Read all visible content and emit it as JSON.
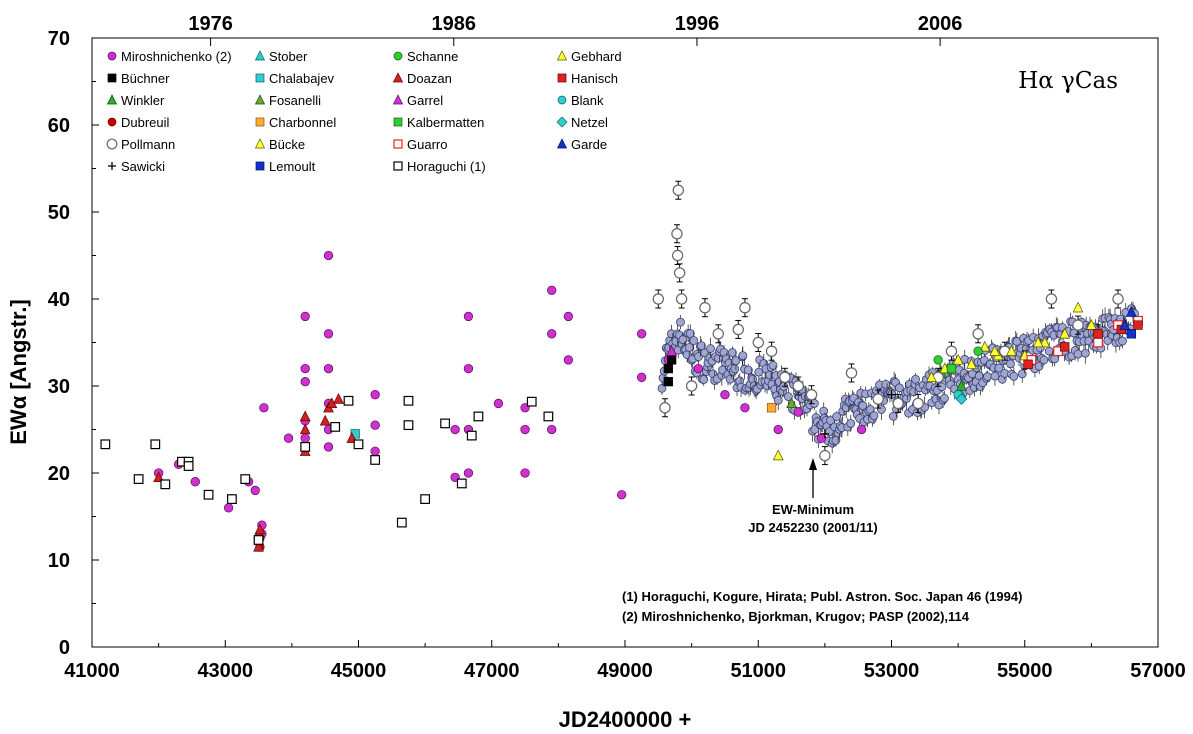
{
  "chart_data": {
    "type": "scatter",
    "title": "Hα γCas",
    "xlabel": "JD2400000 +",
    "ylabel": "EWα [Angstr.]",
    "xlim": [
      41000,
      57000
    ],
    "ylim": [
      0,
      70
    ],
    "x_ticks": [
      41000,
      43000,
      45000,
      47000,
      49000,
      51000,
      53000,
      55000,
      57000
    ],
    "y_ticks": [
      0,
      10,
      20,
      30,
      40,
      50,
      60,
      70
    ],
    "secondary_x_axis": {
      "position": "top",
      "labels": [
        {
          "label": "1976",
          "jd": 42780
        },
        {
          "label": "1986",
          "jd": 46430
        },
        {
          "label": "1996",
          "jd": 50080
        },
        {
          "label": "2006",
          "jd": 53730
        }
      ]
    },
    "grid": false,
    "legend_position": "top-left",
    "annotation": {
      "lines": [
        "EW-Minimum",
        "JD 2452230 (2001/11)"
      ],
      "x": 52230,
      "y": 21
    },
    "references": [
      "(1) Horaguchi, Kogure, Hirata; Publ. Astron. Soc. Japan 46 (1994)",
      "(2) Miroshnichenko, Bjorkman, Krugov; PASP (2002),114"
    ],
    "series": [
      {
        "name": "Miroshnichenko (2)",
        "marker": "circle",
        "color": "#cc33cc",
        "stroke": "#660066",
        "points": [
          [
            42000,
            20
          ],
          [
            42300,
            21
          ],
          [
            42550,
            19
          ],
          [
            42750,
            17.5
          ],
          [
            43050,
            16
          ],
          [
            43350,
            19
          ],
          [
            43450,
            18
          ],
          [
            43550,
            13
          ],
          [
            43550,
            14
          ],
          [
            43580,
            27.5
          ],
          [
            43950,
            24
          ],
          [
            44200,
            38
          ],
          [
            44200,
            32
          ],
          [
            44200,
            30.5
          ],
          [
            44200,
            26
          ],
          [
            44200,
            24
          ],
          [
            44550,
            45
          ],
          [
            44550,
            36
          ],
          [
            44550,
            32
          ],
          [
            44550,
            28
          ],
          [
            44550,
            25
          ],
          [
            44550,
            23
          ],
          [
            45250,
            29
          ],
          [
            45250,
            25.5
          ],
          [
            45250,
            22.5
          ],
          [
            46450,
            25
          ],
          [
            46450,
            19.5
          ],
          [
            46650,
            38
          ],
          [
            46650,
            32
          ],
          [
            46650,
            25
          ],
          [
            46650,
            20
          ],
          [
            47100,
            28
          ],
          [
            47500,
            27.5
          ],
          [
            47500,
            25
          ],
          [
            47500,
            20
          ],
          [
            47900,
            41
          ],
          [
            47900,
            36
          ],
          [
            47900,
            25
          ],
          [
            48150,
            38
          ],
          [
            48150,
            33
          ],
          [
            48950,
            17.5
          ],
          [
            49250,
            36
          ],
          [
            49250,
            31
          ],
          [
            49650,
            33
          ],
          [
            50100,
            32
          ],
          [
            50500,
            29
          ],
          [
            50800,
            27.5
          ],
          [
            51300,
            25
          ],
          [
            51600,
            27
          ],
          [
            51950,
            24
          ],
          [
            52550,
            25
          ]
        ]
      },
      {
        "name": "Büchner",
        "marker": "square",
        "color": "#000000",
        "stroke": "#000000",
        "points": [
          [
            49650,
            30.5
          ],
          [
            49650,
            32
          ],
          [
            49700,
            33
          ]
        ]
      },
      {
        "name": "Winkler",
        "marker": "triangle",
        "color": "#33aa33",
        "stroke": "#005500",
        "points": [
          [
            53750,
            31.5
          ],
          [
            54050,
            30
          ]
        ]
      },
      {
        "name": "Dubreuil",
        "marker": "circle",
        "color": "#cc0000",
        "stroke": "#660000",
        "points": [
          [
            43520,
            12.5
          ],
          [
            43520,
            11.5
          ]
        ]
      },
      {
        "name": "Pollmann",
        "marker": "ocircle",
        "color": "#666666",
        "stroke": "#666666",
        "points": [
          [
            49500,
            40
          ],
          [
            49600,
            27.5
          ],
          [
            49800,
            52.5
          ],
          [
            49780,
            47.5
          ],
          [
            49790,
            45
          ],
          [
            49820,
            43
          ],
          [
            49850,
            40
          ],
          [
            50000,
            30
          ],
          [
            50200,
            39
          ],
          [
            50400,
            36
          ],
          [
            50700,
            36.5
          ],
          [
            50800,
            39
          ],
          [
            51000,
            35
          ],
          [
            51200,
            34
          ],
          [
            51400,
            31
          ],
          [
            51600,
            30
          ],
          [
            51800,
            29
          ],
          [
            52000,
            22
          ],
          [
            52400,
            31.5
          ],
          [
            52800,
            28.5
          ],
          [
            53100,
            28
          ],
          [
            53400,
            28
          ],
          [
            53700,
            31
          ],
          [
            53900,
            34
          ],
          [
            54300,
            36
          ],
          [
            54700,
            34
          ],
          [
            55000,
            33
          ],
          [
            55400,
            40
          ],
          [
            55800,
            37
          ],
          [
            56100,
            36
          ],
          [
            56400,
            40
          ]
        ]
      },
      {
        "name": "Sawicki",
        "marker": "plus",
        "color": "#000000",
        "stroke": "#000000",
        "points": [
          [
            52000,
            24.5
          ],
          [
            53000,
            29
          ]
        ]
      },
      {
        "name": "Stober",
        "marker": "triangle",
        "color": "#33cccc",
        "stroke": "#006666",
        "points": [
          [
            54050,
            29
          ]
        ]
      },
      {
        "name": "Chalabajev",
        "marker": "square",
        "color": "#33cccc",
        "stroke": "#006666",
        "points": [
          [
            44950,
            24.5
          ]
        ]
      },
      {
        "name": "Fosanelli",
        "marker": "triangle",
        "color": "#66aa33",
        "stroke": "#224400",
        "points": [
          [
            51500,
            28
          ]
        ]
      },
      {
        "name": "Charbonnel",
        "marker": "square",
        "color": "#ffaa33",
        "stroke": "#885500",
        "points": [
          [
            51200,
            27.5
          ]
        ]
      },
      {
        "name": "Bücke",
        "marker": "triangle",
        "color": "#ffff33",
        "stroke": "#555500",
        "points": [
          [
            51300,
            22
          ],
          [
            53600,
            31
          ],
          [
            53800,
            32
          ],
          [
            54000,
            33
          ],
          [
            54200,
            32.5
          ],
          [
            54400,
            34.5
          ],
          [
            54600,
            33.5
          ],
          [
            54800,
            34
          ],
          [
            55000,
            33.5
          ],
          [
            55300,
            35
          ],
          [
            55600,
            36
          ],
          [
            55800,
            39
          ],
          [
            56000,
            37
          ]
        ]
      },
      {
        "name": "Lemoult",
        "marker": "square",
        "color": "#1133cc",
        "stroke": "#001166",
        "points": [
          [
            56600,
            36
          ]
        ]
      },
      {
        "name": "Schanne",
        "marker": "circle",
        "color": "#33cc33",
        "stroke": "#006600",
        "points": [
          [
            53700,
            33
          ],
          [
            54300,
            34
          ]
        ]
      },
      {
        "name": "Doazan",
        "marker": "triangle",
        "color": "#cc2222",
        "stroke": "#660000",
        "points": [
          [
            42000,
            19.5
          ],
          [
            43500,
            11.5
          ],
          [
            43500,
            13
          ],
          [
            43520,
            13.5
          ],
          [
            44200,
            22.5
          ],
          [
            44200,
            25
          ],
          [
            44200,
            26.5
          ],
          [
            44500,
            26
          ],
          [
            44550,
            27.5
          ],
          [
            44600,
            28
          ],
          [
            44700,
            28.5
          ],
          [
            44900,
            24
          ]
        ]
      },
      {
        "name": "Garrel",
        "marker": "triangle",
        "color": "#cc33cc",
        "stroke": "#660066",
        "points": [
          [
            49700,
            34
          ]
        ]
      },
      {
        "name": "Kalbermatten",
        "marker": "square",
        "color": "#33cc33",
        "stroke": "#006600",
        "points": [
          [
            53900,
            32
          ]
        ]
      },
      {
        "name": "Guarro",
        "marker": "osquare",
        "color": "#ee2222",
        "stroke": "#ee2222",
        "points": [
          [
            55100,
            33
          ],
          [
            55500,
            34
          ],
          [
            56100,
            35
          ],
          [
            56400,
            37
          ],
          [
            56700,
            37.5
          ]
        ]
      },
      {
        "name": "Horaguchi (1)",
        "marker": "osquare",
        "color": "#000000",
        "stroke": "#000000",
        "points": [
          [
            41200,
            23.3
          ],
          [
            41700,
            19.3
          ],
          [
            41950,
            23.3
          ],
          [
            42100,
            18.7
          ],
          [
            42350,
            21.3
          ],
          [
            42450,
            21.3
          ],
          [
            42450,
            20.8
          ],
          [
            42750,
            17.5
          ],
          [
            43100,
            17
          ],
          [
            43300,
            19.3
          ],
          [
            43500,
            12.3
          ],
          [
            44200,
            23
          ],
          [
            44650,
            25.3
          ],
          [
            44850,
            28.3
          ],
          [
            45000,
            23.3
          ],
          [
            45250,
            21.5
          ],
          [
            45650,
            14.3
          ],
          [
            45750,
            28.3
          ],
          [
            45750,
            25.5
          ],
          [
            46000,
            17
          ],
          [
            46300,
            25.7
          ],
          [
            46550,
            18.8
          ],
          [
            46700,
            24.3
          ],
          [
            46800,
            26.5
          ],
          [
            47600,
            28.2
          ],
          [
            47850,
            26.5
          ]
        ]
      },
      {
        "name": "Gebhard",
        "marker": "triangle",
        "color": "#ffff33",
        "stroke": "#555500",
        "points": [
          [
            54550,
            34
          ],
          [
            55200,
            35
          ]
        ]
      },
      {
        "name": "Hanisch",
        "marker": "square",
        "color": "#dd2222",
        "stroke": "#660000",
        "points": [
          [
            55050,
            32.5
          ],
          [
            55600,
            34.5
          ],
          [
            56100,
            36
          ],
          [
            56450,
            36.5
          ],
          [
            56700,
            37
          ]
        ]
      },
      {
        "name": "Blank",
        "marker": "circle",
        "color": "#33cccc",
        "stroke": "#006666",
        "points": [
          [
            54000,
            29
          ]
        ]
      },
      {
        "name": "Netzel",
        "marker": "diamond",
        "color": "#33cccc",
        "stroke": "#006666",
        "points": [
          [
            54050,
            28.5
          ]
        ]
      },
      {
        "name": "Garde",
        "marker": "triangle",
        "color": "#1133cc",
        "stroke": "#001166",
        "points": [
          [
            56500,
            37
          ],
          [
            56600,
            38.5
          ]
        ]
      }
    ]
  }
}
